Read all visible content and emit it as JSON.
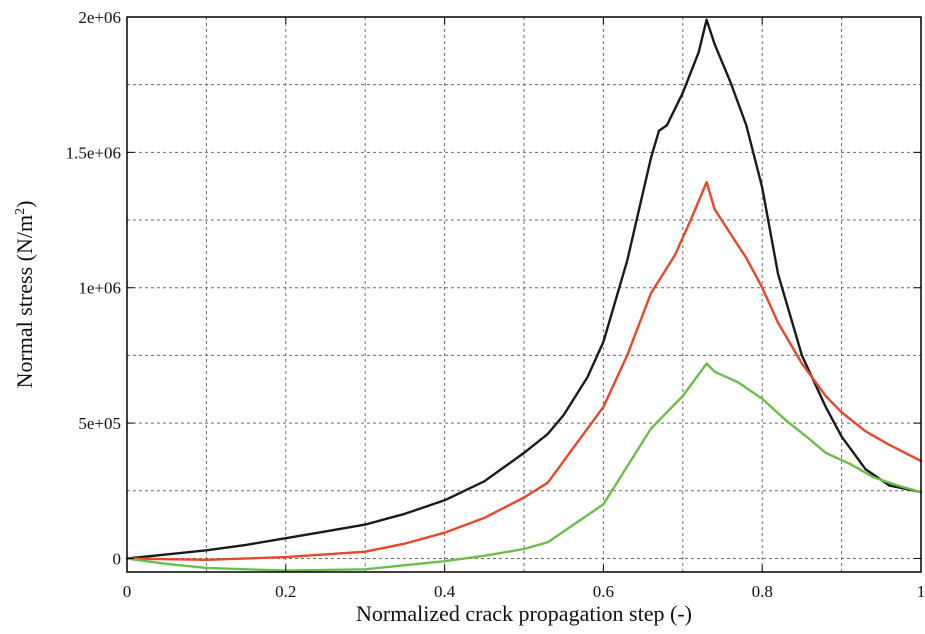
{
  "chart_data": {
    "type": "line",
    "title": "",
    "xlabel": "Normalized crack propagation step  (-)",
    "ylabel_main": "Normal stress (N/m",
    "ylabel_sup": "2",
    "ylabel_close": ")",
    "xlim": [
      0,
      1
    ],
    "ylim": [
      -50000,
      2000000
    ],
    "xticks": [
      0,
      0.2,
      0.4,
      0.6,
      0.8,
      1
    ],
    "xtick_labels": [
      "0",
      "0.2",
      "0.4",
      "0.6",
      "0.8",
      "1"
    ],
    "yticks": [
      0,
      500000,
      1000000,
      1500000,
      2000000
    ],
    "ytick_labels": [
      "0",
      "5e+05",
      "1e+06",
      "1.5e+06",
      "2e+06"
    ],
    "x_minor_grid": [
      0.1,
      0.3,
      0.5,
      0.7,
      0.9
    ],
    "y_minor_grid": [
      250000,
      750000,
      1250000,
      1750000
    ],
    "grid": true,
    "series": [
      {
        "color": "#1a1a1a",
        "x": [
          0,
          0.05,
          0.1,
          0.15,
          0.2,
          0.25,
          0.3,
          0.35,
          0.4,
          0.45,
          0.5,
          0.53,
          0.55,
          0.58,
          0.6,
          0.63,
          0.66,
          0.67,
          0.68,
          0.7,
          0.72,
          0.73,
          0.74,
          0.76,
          0.78,
          0.8,
          0.82,
          0.85,
          0.88,
          0.9,
          0.93,
          0.96,
          1.0
        ],
        "values": [
          0,
          15000,
          30000,
          50000,
          75000,
          100000,
          125000,
          165000,
          215000,
          285000,
          390000,
          460000,
          530000,
          670000,
          800000,
          1100000,
          1480000,
          1580000,
          1600000,
          1720000,
          1870000,
          1990000,
          1900000,
          1760000,
          1600000,
          1370000,
          1050000,
          750000,
          560000,
          450000,
          330000,
          270000,
          245000
        ]
      },
      {
        "color": "#e8472a",
        "x": [
          0,
          0.1,
          0.2,
          0.3,
          0.35,
          0.4,
          0.45,
          0.5,
          0.53,
          0.56,
          0.6,
          0.63,
          0.66,
          0.69,
          0.71,
          0.73,
          0.74,
          0.76,
          0.78,
          0.8,
          0.82,
          0.85,
          0.88,
          0.9,
          0.93,
          0.96,
          1.0
        ],
        "values": [
          0,
          -5000,
          5000,
          25000,
          55000,
          95000,
          150000,
          225000,
          280000,
          400000,
          560000,
          750000,
          980000,
          1120000,
          1250000,
          1390000,
          1290000,
          1200000,
          1110000,
          1000000,
          870000,
          720000,
          600000,
          540000,
          470000,
          420000,
          360000
        ]
      },
      {
        "color": "#6abf4b",
        "x": [
          0,
          0.05,
          0.1,
          0.2,
          0.3,
          0.35,
          0.4,
          0.45,
          0.5,
          0.53,
          0.56,
          0.6,
          0.63,
          0.66,
          0.7,
          0.73,
          0.74,
          0.77,
          0.8,
          0.83,
          0.86,
          0.88,
          0.91,
          0.94,
          0.97,
          1.0
        ],
        "values": [
          0,
          -20000,
          -35000,
          -45000,
          -40000,
          -25000,
          -10000,
          10000,
          35000,
          60000,
          120000,
          200000,
          340000,
          480000,
          600000,
          720000,
          690000,
          650000,
          590000,
          510000,
          440000,
          390000,
          350000,
          300000,
          270000,
          245000
        ]
      }
    ]
  }
}
